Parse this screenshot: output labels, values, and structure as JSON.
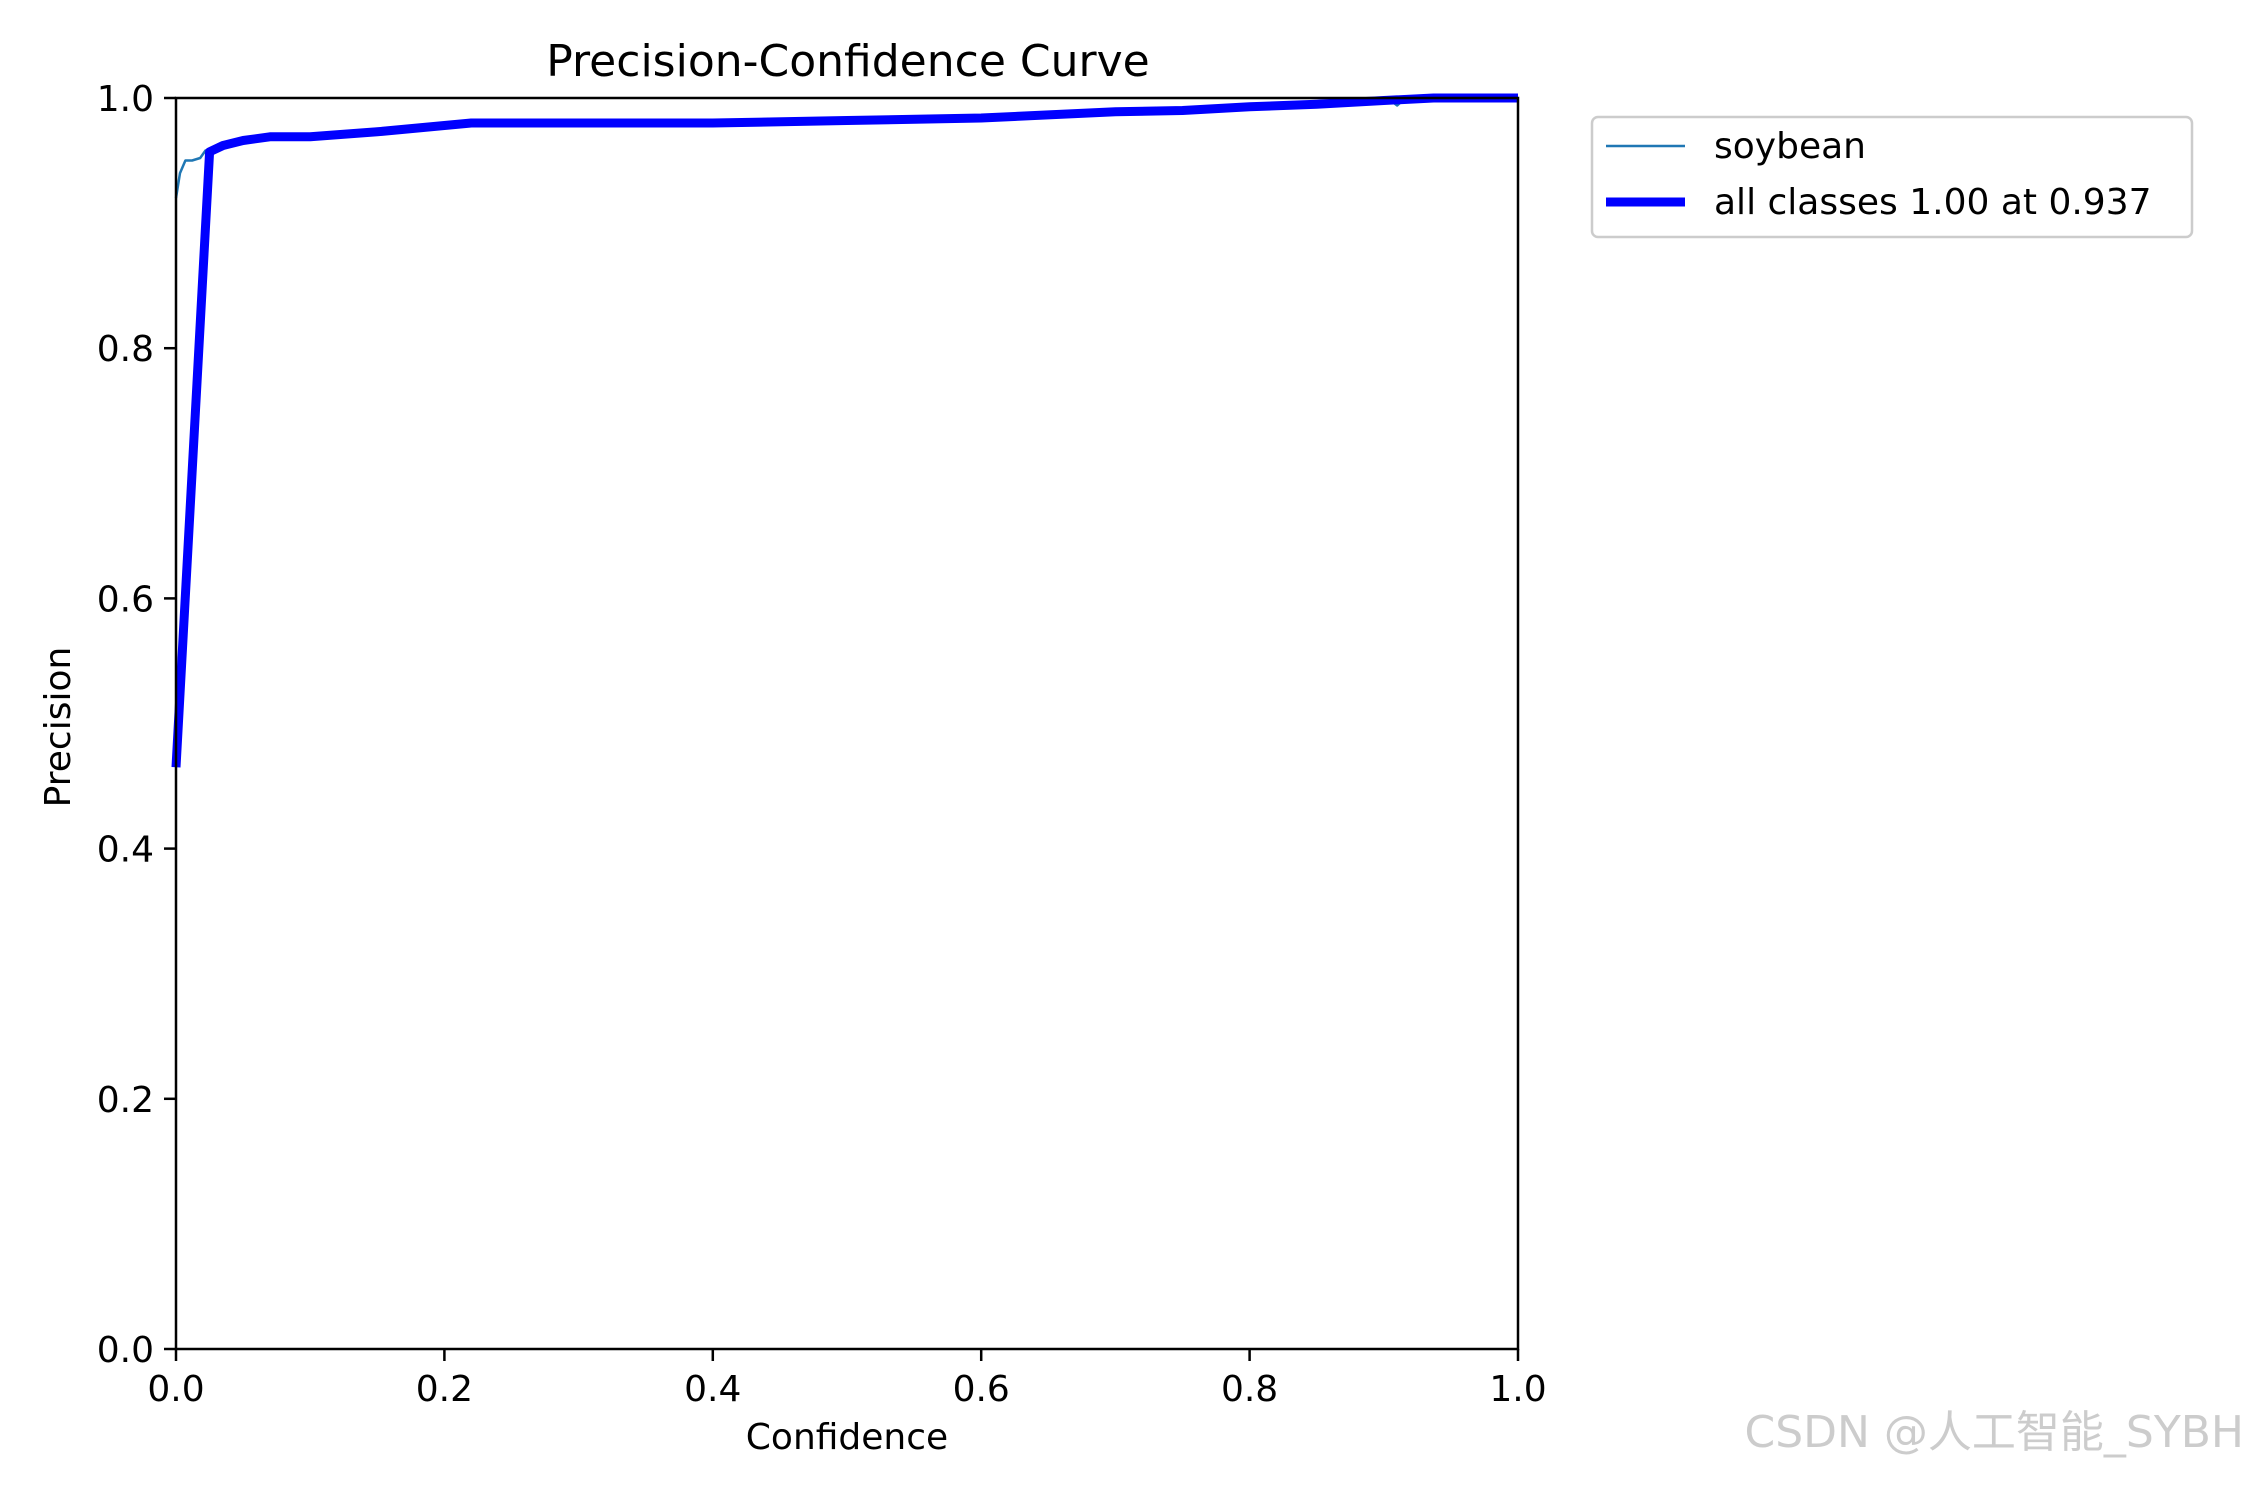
{
  "chart_data": {
    "type": "line",
    "title": "Precision-Confidence Curve",
    "xlabel": "Confidence",
    "ylabel": "Precision",
    "xlim": [
      0.0,
      1.0
    ],
    "ylim": [
      0.0,
      1.0
    ],
    "x_ticks": [
      "0.0",
      "0.2",
      "0.4",
      "0.6",
      "0.8",
      "1.0"
    ],
    "y_ticks": [
      "0.0",
      "0.2",
      "0.4",
      "0.6",
      "0.8",
      "1.0"
    ],
    "grid": false,
    "legend_position": "outside-top-right",
    "series": [
      {
        "name": "soybean",
        "color": "#1f77b4",
        "style": "thin",
        "points": [
          [
            0.0,
            0.92
          ],
          [
            0.003,
            0.94
          ],
          [
            0.007,
            0.95
          ],
          [
            0.012,
            0.95
          ],
          [
            0.018,
            0.952
          ],
          [
            0.022,
            0.958
          ],
          [
            0.026,
            0.958
          ],
          [
            0.035,
            0.962
          ],
          [
            0.05,
            0.966
          ],
          [
            0.07,
            0.97
          ],
          [
            0.1,
            0.97
          ],
          [
            0.15,
            0.974
          ],
          [
            0.2,
            0.979
          ],
          [
            0.25,
            0.98
          ],
          [
            0.3,
            0.98
          ],
          [
            0.4,
            0.98
          ],
          [
            0.5,
            0.982
          ],
          [
            0.6,
            0.984
          ],
          [
            0.7,
            0.989
          ],
          [
            0.75,
            0.99
          ],
          [
            0.8,
            0.993
          ],
          [
            0.85,
            0.995
          ],
          [
            0.88,
            0.997
          ],
          [
            0.905,
            0.998
          ],
          [
            0.91,
            0.994
          ],
          [
            0.915,
            0.999
          ],
          [
            0.93,
            1.0
          ],
          [
            1.0,
            1.0
          ]
        ]
      },
      {
        "name": "all classes 1.00 at 0.937",
        "color": "#0000ff",
        "style": "thick",
        "points": [
          [
            0.0,
            0.465
          ],
          [
            0.025,
            0.957
          ],
          [
            0.035,
            0.962
          ],
          [
            0.05,
            0.966
          ],
          [
            0.07,
            0.969
          ],
          [
            0.1,
            0.969
          ],
          [
            0.15,
            0.973
          ],
          [
            0.2,
            0.978
          ],
          [
            0.22,
            0.98
          ],
          [
            0.3,
            0.98
          ],
          [
            0.4,
            0.98
          ],
          [
            0.5,
            0.982
          ],
          [
            0.6,
            0.984
          ],
          [
            0.7,
            0.989
          ],
          [
            0.75,
            0.99
          ],
          [
            0.8,
            0.993
          ],
          [
            0.85,
            0.995
          ],
          [
            0.9,
            0.998
          ],
          [
            0.937,
            1.0
          ],
          [
            1.0,
            1.0
          ]
        ]
      }
    ]
  },
  "watermark": "CSDN @人工智能_SYBH"
}
